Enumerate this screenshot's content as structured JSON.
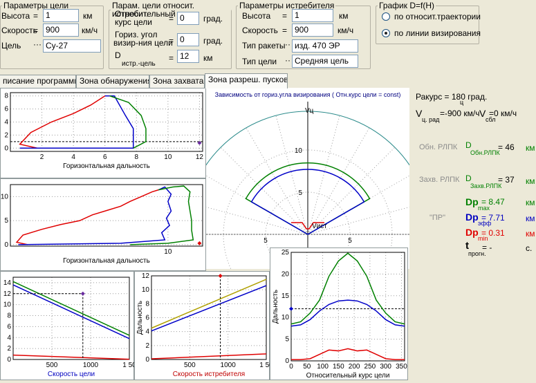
{
  "target_params": {
    "legend": "Параметры цели",
    "altitude_label": "Высота",
    "altitude_value": "1",
    "altitude_unit": "км",
    "speed_label": "Скорость",
    "speed_value": "900",
    "speed_unit": "км/ч",
    "target_label": "Цель",
    "target_value": "Су-27"
  },
  "rel_params": {
    "legend": "Парам. цели относит. истребит.",
    "course_label_1": "Относительный",
    "course_label_2": "курс цели",
    "course_value": "0",
    "course_unit": "град.",
    "hangle_label_1": "Гориз. угол",
    "hangle_label_2": "визир-ния цели",
    "hangle_value": "0",
    "hangle_unit": "град.",
    "dist_label": "D",
    "dist_sub": "истр.-цель",
    "dist_value": "12",
    "dist_unit": "км"
  },
  "fighter_params": {
    "legend": "Параметры истребителя",
    "altitude_label": "Высота",
    "altitude_value": "1",
    "altitude_unit": "км",
    "speed_label": "Скорость",
    "speed_value": "900",
    "speed_unit": "км/ч",
    "missile_label": "Тип ракеты",
    "missile_value": "изд. 470 ЭР",
    "target_type_label": "Тип цели",
    "target_type_value": "Средняя цель"
  },
  "graph_mode": {
    "legend": "График  D=f(H)",
    "option1": "по относит.траектории",
    "option2": "по линии визирования",
    "selected": 2
  },
  "tabs": [
    {
      "label": "писание программы",
      "active": false
    },
    {
      "label": "Зона обнаружения",
      "active": false
    },
    {
      "label": "Зона захвата",
      "active": false
    },
    {
      "label": "Зона разреш. пусков",
      "active": true
    }
  ],
  "info_panel": {
    "aspect_text": "Ракурс = 180 град.",
    "aspect_sub": "ц",
    "v_target_label": "V",
    "v_target_sub": "ц. рад",
    "v_target_value": "=-900 км/ч",
    "v_closing_label": "V",
    "v_closing_sub": "сбл",
    "v_closing_value": "=0 км/ч",
    "obn_label": "Обн. РЛПК",
    "obn_sym": "D",
    "obn_sub": "Обн.РЛПК",
    "obn_value": "= 46",
    "obn_unit": "км",
    "zahv_label": "Захв. РЛПК",
    "zahv_sym": "D",
    "zahv_sub": "Захв.РЛПК",
    "zahv_value": "= 37",
    "zahv_unit": "км",
    "dpmax_sym": "Dp",
    "dpmax_sub": "max",
    "dpmax_value": "= 8.47",
    "dpmax_unit": "км",
    "pr_label": "\"ПР\"",
    "dpeff_sym": "Dp",
    "dpeff_sub": "эфф",
    "dpeff_value": "= 7.71",
    "dpeff_unit": "км",
    "dpmin_sym": "Dp",
    "dpmin_sub": "min",
    "dpmin_value": "= 0.31",
    "dpmin_unit": "км",
    "t_sym": "t",
    "t_sub": "прогн.",
    "t_value": "=      -",
    "t_unit": "с.",
    "colors": {
      "obn": "#008000",
      "zahv": "#008000",
      "dpmax": "#008000",
      "dpeff": "#0000c0",
      "dpmin": "#e00000"
    }
  },
  "chart_data": [
    {
      "type": "line",
      "id": "zone-side-view-1",
      "xlabel": "Горизонтальная дальность",
      "xticks": [
        "2",
        "4",
        "6",
        "8",
        "10",
        "12"
      ],
      "yticks": [
        "0",
        "2",
        "4",
        "6",
        "8"
      ],
      "xlim": [
        0,
        12.2
      ],
      "ylim": [
        -0.5,
        8.5
      ],
      "series": [
        {
          "color": "#e00000",
          "points": [
            [
              1.7,
              0
            ],
            [
              0.6,
              0.6
            ],
            [
              1.3,
              2.4
            ],
            [
              2.6,
              4
            ],
            [
              4,
              5.3
            ],
            [
              5.1,
              6.6
            ],
            [
              6,
              8
            ],
            [
              6.3,
              8
            ]
          ]
        },
        {
          "color": "#0000c8",
          "points": [
            [
              6,
              8
            ],
            [
              6.6,
              8
            ],
            [
              7.3,
              5
            ],
            [
              7.8,
              3
            ],
            [
              7.8,
              0
            ],
            [
              0.6,
              0
            ]
          ]
        },
        {
          "color": "#008000",
          "points": [
            [
              6.3,
              8
            ],
            [
              7.5,
              7
            ],
            [
              8.3,
              5
            ],
            [
              8.6,
              3
            ],
            [
              8.6,
              1
            ],
            [
              7.8,
              0
            ]
          ]
        }
      ],
      "marker": {
        "x": 12,
        "y": 0.8,
        "color": "#6a2ca0"
      },
      "crosshair_y": 1
    },
    {
      "type": "line",
      "id": "zone-side-view-2",
      "xlabel": "Горизонтальная дальность",
      "xticks": [
        "10"
      ],
      "yticks": [
        "0",
        "5",
        "10"
      ],
      "xlim": [
        0,
        12.2
      ],
      "ylim": [
        -0.3,
        12.5
      ],
      "series": [
        {
          "color": "#e00000",
          "points": [
            [
              1.1,
              0
            ],
            [
              0.4,
              0.5
            ],
            [
              0.8,
              2
            ],
            [
              2,
              3.2
            ],
            [
              3.2,
              4.2
            ],
            [
              4.4,
              5
            ],
            [
              5.2,
              6.2
            ],
            [
              6.2,
              7.2
            ],
            [
              7,
              8
            ],
            [
              7.6,
              9
            ],
            [
              8.3,
              10
            ],
            [
              9,
              11
            ],
            [
              9.4,
              11.4
            ]
          ]
        },
        {
          "color": "#0000c8",
          "points": [
            [
              9.4,
              11.4
            ],
            [
              9.8,
              12
            ],
            [
              10.2,
              10.5
            ],
            [
              10,
              9
            ],
            [
              10.2,
              7
            ],
            [
              9.9,
              5.5
            ],
            [
              10.1,
              4
            ],
            [
              9.6,
              2.5
            ],
            [
              9.8,
              1
            ],
            [
              7,
              0.3
            ],
            [
              0.5,
              0
            ]
          ]
        },
        {
          "color": "#008000",
          "points": [
            [
              9.4,
              11.4
            ],
            [
              10.3,
              12
            ],
            [
              11,
              12.2
            ],
            [
              11.4,
              11
            ],
            [
              11.3,
              9
            ],
            [
              11.4,
              7
            ],
            [
              11.5,
              5
            ],
            [
              11.5,
              3
            ],
            [
              11.6,
              1
            ],
            [
              10,
              0.3
            ],
            [
              7.6,
              0
            ]
          ]
        }
      ],
      "marker": {
        "x": 12,
        "y": 0.3,
        "color": "#e00000"
      }
    },
    {
      "type": "polar",
      "id": "zone-top-view",
      "title": "Зависимость от гориз.угла визирования ( Отн.курс цели = const)",
      "axis_top_label": "Vц",
      "axis_bottom_label": "Vист",
      "radial_ticks": [
        "5",
        "10"
      ],
      "horizontal_ticks": [
        "5",
        "5"
      ],
      "sector_half_angle_deg": 60,
      "series": [
        {
          "name": "max",
          "color": "#008000",
          "radius": 8.47
        },
        {
          "name": "eff",
          "color": "#0000c8",
          "radius": 7.71
        },
        {
          "name": "min",
          "color": "#e00000",
          "radius": 0.31
        }
      ]
    },
    {
      "type": "line",
      "id": "d-vs-target-speed",
      "xlabel": "Скорость цели",
      "xticks": [
        "500",
        "1000",
        "1 50"
      ],
      "yticks": [
        "0",
        "2",
        "4",
        "6",
        "8",
        "10",
        "12",
        "14"
      ],
      "xlim": [
        0,
        1500
      ],
      "ylim": [
        0,
        15
      ],
      "series": [
        {
          "color": "#008000",
          "x": [
            0,
            1500
          ],
          "y": [
            14.2,
            4.4
          ]
        },
        {
          "color": "#0000c8",
          "x": [
            0,
            1500
          ],
          "y": [
            13.6,
            3.8
          ]
        },
        {
          "color": "#e00000",
          "x": [
            0,
            1500
          ],
          "y": [
            0.8,
            0.05
          ]
        }
      ],
      "marker": {
        "x": 900,
        "y": 12,
        "color": "#6a2ca0"
      }
    },
    {
      "type": "line",
      "id": "d-vs-fighter-speed",
      "xlabel": "Скорость истребителя",
      "ylabel": "Дальность",
      "xticks": [
        "500",
        "1000",
        "1 50"
      ],
      "yticks": [
        "0",
        "2",
        "4",
        "6",
        "8",
        "10",
        "12"
      ],
      "xlim": [
        0,
        1500
      ],
      "ylim": [
        0,
        12
      ],
      "series": [
        {
          "color": "#b0a000",
          "x": [
            0,
            1500
          ],
          "y": [
            4.5,
            11.5
          ]
        },
        {
          "color": "#0000c8",
          "x": [
            0,
            1500
          ],
          "y": [
            4.1,
            10.6
          ]
        },
        {
          "color": "#e00000",
          "x": [
            0,
            1500
          ],
          "y": [
            0.1,
            0.8
          ]
        }
      ],
      "marker": {
        "x": 900,
        "y": 12,
        "color": "#e00000"
      }
    },
    {
      "type": "line",
      "id": "d-vs-relative-course",
      "xlabel": "Относительный курс цели",
      "ylabel": "Дальность",
      "xticks": [
        "0",
        "50",
        "100",
        "150",
        "200",
        "250",
        "300",
        "350"
      ],
      "yticks": [
        "0",
        "5",
        "10",
        "15",
        "20",
        "25"
      ],
      "xlim": [
        0,
        360
      ],
      "ylim": [
        0,
        25
      ],
      "series": [
        {
          "color": "#008000",
          "x": [
            0,
            30,
            60,
            90,
            120,
            150,
            180,
            210,
            240,
            270,
            300,
            330,
            360
          ],
          "y": [
            8.5,
            9,
            11,
            14,
            19.5,
            23,
            24.8,
            23,
            19.5,
            14,
            11,
            9,
            8.5
          ]
        },
        {
          "color": "#0000c8",
          "x": [
            0,
            30,
            60,
            90,
            120,
            150,
            180,
            210,
            240,
            270,
            300,
            330,
            360
          ],
          "y": [
            8,
            8.3,
            9.5,
            11.5,
            13,
            13.8,
            14,
            13.8,
            13,
            11.5,
            9.5,
            8.3,
            8
          ]
        },
        {
          "color": "#e00000",
          "x": [
            0,
            30,
            60,
            90,
            120,
            150,
            180,
            210,
            240,
            270,
            300,
            330,
            360
          ],
          "y": [
            0.3,
            0.3,
            0.5,
            1.5,
            2.5,
            2.3,
            2.8,
            2.3,
            2.5,
            1.5,
            0.5,
            0.3,
            0.3
          ]
        }
      ],
      "crosshair_y": 12,
      "marker": {
        "x": 0,
        "y": 12,
        "color": "#0000c8"
      }
    }
  ]
}
